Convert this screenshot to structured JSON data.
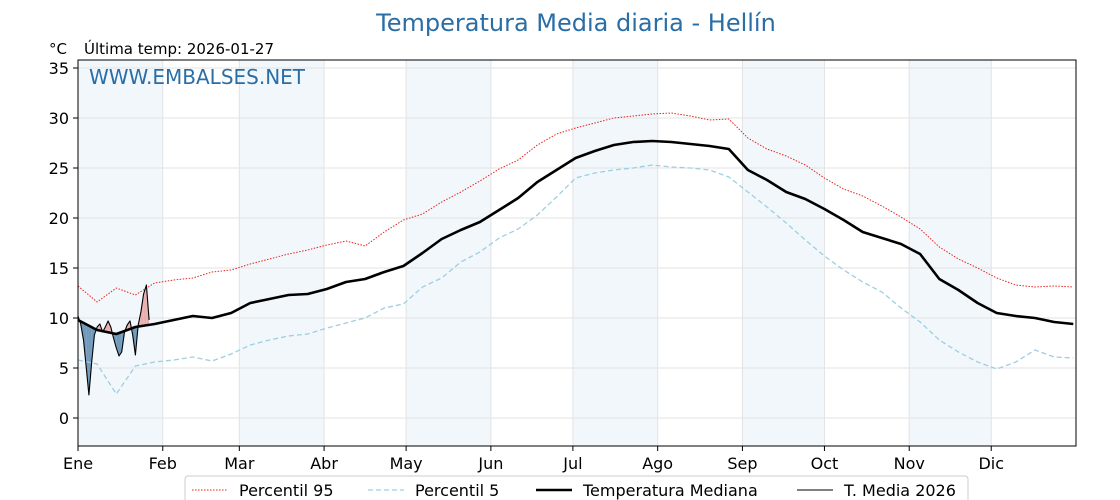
{
  "chart_data": {
    "type": "line",
    "title": "Temperatura Media diaria - Hellín",
    "unit_label": "°C",
    "last_temp_label": "Última temp: 2026-01-27",
    "watermark": "WWW.EMBALSES.NET",
    "ylim": [
      -2.8,
      35.8
    ],
    "yticks": [
      0,
      5,
      10,
      15,
      20,
      25,
      30,
      35
    ],
    "xlim": [
      1,
      366
    ],
    "month_labels": [
      "Ene",
      "Feb",
      "Mar",
      "Abr",
      "May",
      "Jun",
      "Jul",
      "Ago",
      "Sep",
      "Oct",
      "Nov",
      "Dic"
    ],
    "month_start_days": [
      1,
      32,
      60,
      91,
      121,
      152,
      182,
      213,
      244,
      274,
      305,
      335
    ],
    "grid": true,
    "legend_position": "bottom",
    "series": [
      {
        "name": "Percentil 95",
        "color": "#e8221c",
        "style": "dotted",
        "x": [
          1,
          8,
          15,
          22,
          29,
          36,
          43,
          50,
          57,
          64,
          71,
          78,
          85,
          92,
          99,
          106,
          113,
          120,
          127,
          134,
          141,
          148,
          155,
          162,
          169,
          176,
          183,
          190,
          197,
          204,
          211,
          218,
          225,
          232,
          239,
          246,
          253,
          260,
          267,
          274,
          281,
          288,
          295,
          302,
          309,
          316,
          323,
          330,
          337,
          344,
          351,
          358,
          365
        ],
        "values": [
          13.2,
          11.6,
          13.0,
          12.3,
          13.5,
          13.8,
          14.0,
          14.6,
          14.8,
          15.4,
          15.9,
          16.4,
          16.8,
          17.3,
          17.7,
          17.2,
          18.6,
          19.8,
          20.4,
          21.6,
          22.6,
          23.7,
          24.9,
          25.8,
          27.3,
          28.4,
          29.0,
          29.5,
          30.0,
          30.2,
          30.4,
          30.5,
          30.2,
          29.8,
          29.9,
          28.0,
          26.9,
          26.2,
          25.3,
          24.0,
          22.9,
          22.2,
          21.2,
          20.1,
          18.9,
          17.1,
          15.9,
          15.0,
          14.0,
          13.3,
          13.1,
          13.2,
          13.1
        ]
      },
      {
        "name": "Percentil 5",
        "color": "#9ecfe0",
        "style": "dashed",
        "x": [
          1,
          8,
          15,
          22,
          29,
          36,
          43,
          50,
          57,
          64,
          71,
          78,
          85,
          92,
          99,
          106,
          113,
          120,
          127,
          134,
          141,
          148,
          155,
          162,
          169,
          176,
          183,
          190,
          197,
          204,
          211,
          218,
          225,
          232,
          239,
          246,
          253,
          260,
          267,
          274,
          281,
          288,
          295,
          302,
          309,
          316,
          323,
          330,
          337,
          344,
          351,
          358,
          365
        ],
        "values": [
          5.8,
          5.4,
          2.4,
          5.2,
          5.6,
          5.8,
          6.1,
          5.7,
          6.4,
          7.3,
          7.8,
          8.2,
          8.4,
          9.0,
          9.5,
          10.0,
          11.0,
          11.4,
          13.1,
          14.0,
          15.6,
          16.6,
          18.0,
          18.9,
          20.3,
          22.1,
          24.0,
          24.5,
          24.8,
          25.0,
          25.3,
          25.1,
          25.0,
          24.8,
          24.1,
          22.6,
          21.1,
          19.5,
          17.8,
          16.2,
          14.8,
          13.6,
          12.6,
          11.0,
          9.6,
          7.8,
          6.6,
          5.6,
          4.9,
          5.6,
          6.8,
          6.1,
          6.0
        ]
      },
      {
        "name": "Temperatura Mediana",
        "color": "#000000",
        "style": "thick",
        "x": [
          1,
          8,
          15,
          22,
          29,
          36,
          43,
          50,
          57,
          64,
          71,
          78,
          85,
          92,
          99,
          106,
          113,
          120,
          127,
          134,
          141,
          148,
          155,
          162,
          169,
          176,
          183,
          190,
          197,
          204,
          211,
          218,
          225,
          232,
          239,
          246,
          253,
          260,
          267,
          274,
          281,
          288,
          295,
          302,
          309,
          316,
          323,
          330,
          337,
          344,
          351,
          358,
          365
        ],
        "values": [
          9.8,
          8.8,
          8.4,
          9.1,
          9.4,
          9.8,
          10.2,
          10.0,
          10.5,
          11.5,
          11.9,
          12.3,
          12.4,
          12.9,
          13.6,
          13.9,
          14.6,
          15.2,
          16.5,
          17.9,
          18.8,
          19.6,
          20.8,
          22.0,
          23.6,
          24.8,
          26.0,
          26.7,
          27.3,
          27.6,
          27.7,
          27.6,
          27.4,
          27.2,
          26.9,
          24.8,
          23.8,
          22.6,
          21.9,
          20.9,
          19.8,
          18.6,
          18.0,
          17.4,
          16.4,
          13.9,
          12.8,
          11.5,
          10.5,
          10.2,
          10.0,
          9.6,
          9.4
        ]
      },
      {
        "name": "T. Media 2026",
        "color": "#000000",
        "style": "thin",
        "x": [
          1,
          2,
          3,
          4,
          5,
          6,
          7,
          8,
          9,
          10,
          11,
          12,
          13,
          14,
          15,
          16,
          17,
          18,
          19,
          20,
          21,
          22,
          23,
          24,
          25,
          26,
          27
        ],
        "values": [
          10.2,
          9.4,
          7.8,
          5.1,
          2.3,
          5.6,
          8.3,
          9.1,
          9.4,
          8.6,
          9.1,
          9.7,
          9.1,
          8.0,
          7.0,
          6.2,
          6.6,
          8.6,
          9.3,
          9.7,
          8.3,
          6.3,
          9.3,
          10.6,
          12.4,
          13.3,
          9.8
        ]
      }
    ]
  }
}
